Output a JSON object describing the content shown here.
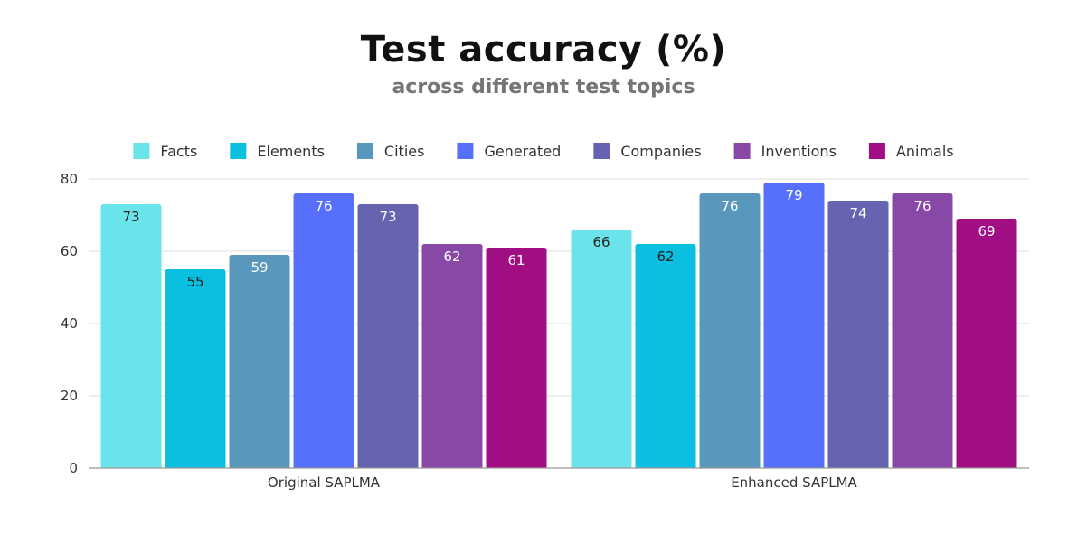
{
  "chart_data": {
    "type": "bar",
    "title": "Test accuracy (%)",
    "subtitle": "across different test topics",
    "categories": [
      "Original SAPLMA",
      "Enhanced SAPLMA"
    ],
    "series": [
      {
        "name": "Facts",
        "color": "#6AE4EA",
        "label_color": "#222222",
        "values": [
          73,
          66
        ]
      },
      {
        "name": "Elements",
        "color": "#0BBFE0",
        "label_color": "#222222",
        "values": [
          55,
          62
        ]
      },
      {
        "name": "Cities",
        "color": "#5A97BC",
        "label_color": "#ffffff",
        "values": [
          59,
          76
        ]
      },
      {
        "name": "Generated",
        "color": "#5670FB",
        "label_color": "#ffffff",
        "values": [
          76,
          79
        ]
      },
      {
        "name": "Companies",
        "color": "#6663B0",
        "label_color": "#ffffff",
        "values": [
          73,
          74
        ]
      },
      {
        "name": "Inventions",
        "color": "#8748A6",
        "label_color": "#ffffff",
        "values": [
          62,
          76
        ]
      },
      {
        "name": "Animals",
        "color": "#A10D83",
        "label_color": "#ffffff",
        "values": [
          61,
          69
        ]
      }
    ],
    "yticks": [
      0,
      20,
      40,
      60,
      80
    ],
    "ylim": [
      0,
      80
    ],
    "grid": true,
    "legend_position": "top"
  }
}
